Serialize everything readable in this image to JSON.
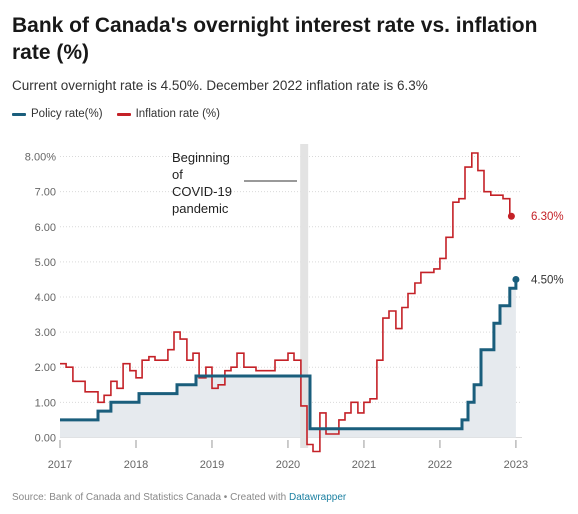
{
  "title": "Bank of Canada's overnight interest rate vs. inflation rate (%)",
  "subtitle": "Current overnight rate is 4.50%. December 2022 inflation rate is 6.3%",
  "footer": {
    "source_text": "Source: Bank of Canada and Statistics Canada • Created with ",
    "link_text": "Datawrapper"
  },
  "colors": {
    "policy": "#1a5e7c",
    "inflation": "#c42127",
    "policy_fill": "#e6eaee",
    "band": "#e3e3e3",
    "grid": "#d9d9d9"
  },
  "annotation": {
    "text": [
      "Beginning",
      "of",
      "COVID-19",
      "pandemic"
    ],
    "x": 2020.2
  },
  "chart_data": {
    "type": "line",
    "title": "Bank of Canada's overnight interest rate vs. inflation rate (%)",
    "subtitle": "Current overnight rate is 4.50%. December 2022 inflation rate is 6.3%",
    "xlim": [
      2017,
      2023.08
    ],
    "ylim": [
      -0.3,
      8.3
    ],
    "y_ticks": [
      0,
      1,
      2,
      3,
      4,
      5,
      6,
      7,
      8
    ],
    "y_tick_labels": [
      "0.00",
      "1.00",
      "2.00",
      "3.00",
      "4.00",
      "5.00",
      "6.00",
      "7.00",
      "8.00%"
    ],
    "x_ticks": [
      2017,
      2018,
      2019,
      2020,
      2021,
      2022,
      2023
    ],
    "x_tick_labels": [
      "2017",
      "2018",
      "2019",
      "2020",
      "2021",
      "2022",
      "2023"
    ],
    "grid": true,
    "legend_position": "top-left",
    "series": [
      {
        "name": "Policy rate(%)",
        "end_label": "4.50%",
        "step": true,
        "x": [
          2017.0,
          2017.5,
          2017.67,
          2018.04,
          2018.54,
          2018.79,
          2020.25,
          2020.29,
          2022.21,
          2022.29,
          2022.37,
          2022.45,
          2022.54,
          2022.71,
          2022.79,
          2022.92,
          2023.0
        ],
        "y": [
          0.5,
          0.75,
          1.0,
          1.25,
          1.5,
          1.75,
          1.75,
          0.25,
          0.25,
          0.5,
          1.0,
          1.5,
          2.5,
          3.25,
          3.75,
          4.25,
          4.5
        ]
      },
      {
        "name": "Inflation rate (%)",
        "end_label": "6.30%",
        "step": true,
        "x": [
          2017.0,
          2017.08,
          2017.17,
          2017.25,
          2017.33,
          2017.42,
          2017.5,
          2017.58,
          2017.67,
          2017.75,
          2017.83,
          2017.92,
          2018.0,
          2018.08,
          2018.17,
          2018.25,
          2018.33,
          2018.42,
          2018.5,
          2018.58,
          2018.67,
          2018.75,
          2018.83,
          2018.92,
          2019.0,
          2019.08,
          2019.17,
          2019.25,
          2019.33,
          2019.42,
          2019.5,
          2019.58,
          2019.67,
          2019.75,
          2019.83,
          2019.92,
          2020.0,
          2020.08,
          2020.17,
          2020.25,
          2020.33,
          2020.42,
          2020.5,
          2020.58,
          2020.67,
          2020.75,
          2020.83,
          2020.92,
          2021.0,
          2021.08,
          2021.17,
          2021.25,
          2021.33,
          2021.42,
          2021.5,
          2021.58,
          2021.67,
          2021.75,
          2021.83,
          2021.92,
          2022.0,
          2022.08,
          2022.17,
          2022.25,
          2022.33,
          2022.42,
          2022.5,
          2022.58,
          2022.67,
          2022.75,
          2022.83,
          2022.92
        ],
        "y": [
          2.1,
          2.0,
          1.6,
          1.6,
          1.3,
          1.3,
          1.0,
          1.2,
          1.6,
          1.4,
          2.1,
          1.9,
          1.7,
          2.2,
          2.3,
          2.2,
          2.2,
          2.5,
          3.0,
          2.8,
          2.2,
          2.4,
          1.7,
          2.0,
          1.4,
          1.5,
          1.9,
          2.0,
          2.4,
          2.0,
          2.0,
          1.9,
          1.9,
          1.9,
          2.2,
          2.2,
          2.4,
          2.2,
          0.9,
          -0.2,
          -0.4,
          0.7,
          0.1,
          0.1,
          0.5,
          0.7,
          1.0,
          0.7,
          1.0,
          1.1,
          2.2,
          3.4,
          3.6,
          3.1,
          3.7,
          4.1,
          4.4,
          4.7,
          4.7,
          4.8,
          5.1,
          5.7,
          6.7,
          6.8,
          7.7,
          8.1,
          7.6,
          7.0,
          6.9,
          6.9,
          6.8,
          6.3
        ]
      }
    ]
  }
}
